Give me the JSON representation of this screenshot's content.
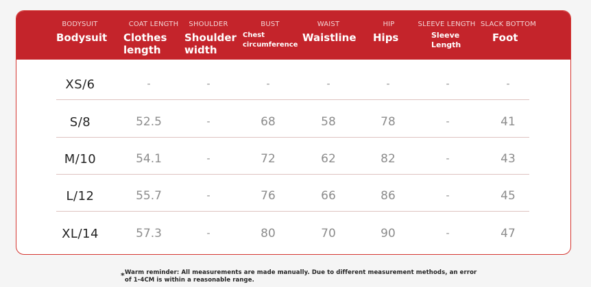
{
  "header": {
    "columns": [
      {
        "en": "BODYSUIT",
        "label": "Bodysuit"
      },
      {
        "en": "COAT LENGTH",
        "label": "Clothes\nlength"
      },
      {
        "en": "SHOULDER",
        "label": "Shoulder\nwidth"
      },
      {
        "en": "BUST",
        "label": "Chest\ncircumference"
      },
      {
        "en": "WAIST",
        "label": "Waistline"
      },
      {
        "en": "HIP",
        "label": "Hips"
      },
      {
        "en": "SLEEVE LENGTH",
        "label": "Sleeve\nLength"
      },
      {
        "en": "SLACK BOTTOM",
        "label": "Foot"
      }
    ]
  },
  "rows": [
    {
      "size": "XS/6",
      "values": [
        "-",
        "-",
        "-",
        "-",
        "-",
        "-",
        "-"
      ]
    },
    {
      "size": "S/8",
      "values": [
        "52.5",
        "-",
        "68",
        "58",
        "78",
        "-",
        "41"
      ]
    },
    {
      "size": "M/10",
      "values": [
        "54.1",
        "-",
        "72",
        "62",
        "82",
        "-",
        "43"
      ]
    },
    {
      "size": "L/12",
      "values": [
        "55.7",
        "-",
        "76",
        "66",
        "86",
        "-",
        "45"
      ]
    },
    {
      "size": "XL/14",
      "values": [
        "57.3",
        "-",
        "80",
        "70",
        "90",
        "-",
        "47"
      ]
    }
  ],
  "note": {
    "star": "*",
    "text": "Warm reminder: All measurements are made manually. Due to different measurement methods, an error of 1-4CM is within a reasonable range."
  },
  "colors": {
    "header_bg": "#c4242b",
    "border": "#d4342f",
    "value_text": "#8c8c8c"
  }
}
